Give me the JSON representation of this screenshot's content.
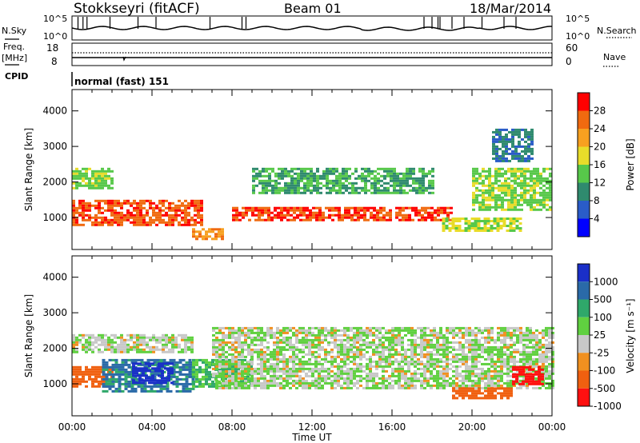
{
  "header": {
    "station": "Stokkseyri (fitACF)",
    "beam": "Beam 01",
    "date": "18/Mar/2014"
  },
  "left_labels": {
    "nsky": "N.Sky",
    "freq_line1": "Freq.",
    "freq_line2": "[MHz]",
    "cpid": "CPID"
  },
  "right_labels": {
    "nsearch": "N.Search",
    "nave": "Nave"
  },
  "cpid_value": "normal (fast) 151",
  "noise_ticks": [
    "10^5",
    "10^0"
  ],
  "freq_ticks": [
    "18",
    "8"
  ],
  "nave_ticks": [
    "60",
    "0"
  ],
  "colors": {
    "power": [
      "#0000ff",
      "#2a5cc8",
      "#2f8a6e",
      "#57c84a",
      "#e8dc2a",
      "#f7a020",
      "#f06a10",
      "#ff0000"
    ],
    "velocity": [
      "#1a2fc8",
      "#2a6aa8",
      "#2fa86a",
      "#60d040",
      "#c8c8c8",
      "#f09020",
      "#f06010",
      "#ff1010"
    ]
  },
  "chart_data": [
    {
      "type": "heatmap",
      "quantity": "Power",
      "ylabel": "Slant Range [km]",
      "y_ticks": [
        1000,
        2000,
        3000,
        4000
      ],
      "ylim": [
        100,
        4600
      ],
      "x_ticks": [
        "00:00",
        "04:00",
        "08:00",
        "12:00",
        "16:00",
        "20:00",
        "00:00"
      ],
      "colorbar": {
        "label": "Power [dB]",
        "ticks": [
          "4",
          "8",
          "12",
          "16",
          "20",
          "24",
          "28"
        ]
      },
      "echo_regions": [
        {
          "t_start": 0.0,
          "t_end": 2.0,
          "range_min": 1800,
          "range_max": 2400,
          "power_db": 14
        },
        {
          "t_start": 0.0,
          "t_end": 6.5,
          "range_min": 800,
          "range_max": 1500,
          "power_db": 26
        },
        {
          "t_start": 6.0,
          "t_end": 7.5,
          "range_min": 400,
          "range_max": 700,
          "power_db": 22
        },
        {
          "t_start": 8.0,
          "t_end": 19.0,
          "range_min": 900,
          "range_max": 1300,
          "power_db": 27
        },
        {
          "t_start": 9.0,
          "t_end": 18.0,
          "range_min": 1700,
          "range_max": 2400,
          "power_db": 11
        },
        {
          "t_start": 18.5,
          "t_end": 22.5,
          "range_min": 600,
          "range_max": 1000,
          "power_db": 16
        },
        {
          "t_start": 20.0,
          "t_end": 24.0,
          "range_min": 1200,
          "range_max": 2400,
          "power_db": 14
        },
        {
          "t_start": 21.0,
          "t_end": 23.0,
          "range_min": 2600,
          "range_max": 3500,
          "power_db": 8
        }
      ]
    },
    {
      "type": "heatmap",
      "quantity": "Velocity",
      "ylabel": "Slant Range [km]",
      "y_ticks": [
        1000,
        2000,
        3000,
        4000
      ],
      "ylim": [
        100,
        4600
      ],
      "x_ticks": [
        "00:00",
        "04:00",
        "08:00",
        "12:00",
        "16:00",
        "20:00",
        "00:00"
      ],
      "xlabel": "Time UT",
      "colorbar": {
        "label": "Velocity [m s⁻¹]",
        "ticks": [
          "1000",
          "500",
          "100",
          "25",
          "-25",
          "-100",
          "-500",
          "-1000"
        ]
      },
      "echo_regions": [
        {
          "t_start": 0.0,
          "t_end": 2.0,
          "range_min": 900,
          "range_max": 1500,
          "velocity": -300
        },
        {
          "t_start": 1.5,
          "t_end": 6.0,
          "range_min": 800,
          "range_max": 1700,
          "velocity": 300
        },
        {
          "t_start": 3.0,
          "t_end": 5.0,
          "range_min": 1000,
          "range_max": 1600,
          "velocity": 800
        },
        {
          "t_start": 6.0,
          "t_end": 9.0,
          "range_min": 900,
          "range_max": 1700,
          "velocity": 100
        },
        {
          "t_start": 0.0,
          "t_end": 6.0,
          "range_min": 1900,
          "range_max": 2400,
          "velocity": 0
        },
        {
          "t_start": 7.0,
          "t_end": 24.0,
          "range_min": 900,
          "range_max": 2600,
          "velocity": 0
        },
        {
          "t_start": 19.0,
          "t_end": 22.0,
          "range_min": 600,
          "range_max": 900,
          "velocity": -300
        },
        {
          "t_start": 22.0,
          "t_end": 23.5,
          "range_min": 1000,
          "range_max": 1500,
          "velocity": -800
        }
      ]
    }
  ]
}
